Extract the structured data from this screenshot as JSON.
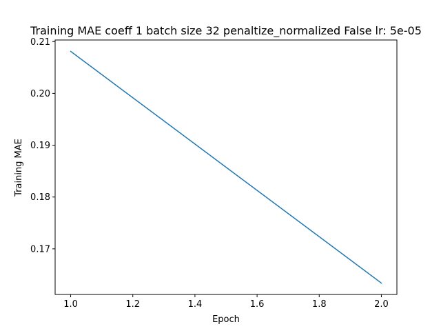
{
  "chart_data": {
    "type": "line",
    "title": "Training MAE coeff 1 batch size 32 penaltize_normalized False lr: 5e-05",
    "xlabel": "Epoch",
    "ylabel": "Training MAE",
    "x_ticks": [
      "1.0",
      "1.2",
      "1.4",
      "1.6",
      "1.8",
      "2.0"
    ],
    "y_ticks": [
      "0.17",
      "0.18",
      "0.19",
      "0.20",
      "0.21"
    ],
    "xlim": [
      0.95,
      2.05
    ],
    "ylim": [
      0.1612,
      0.2103
    ],
    "grid": false,
    "series": [
      {
        "color": "#1f77b4",
        "x": [
          1.0,
          2.0
        ],
        "y": [
          0.2081,
          0.1634
        ]
      }
    ]
  }
}
